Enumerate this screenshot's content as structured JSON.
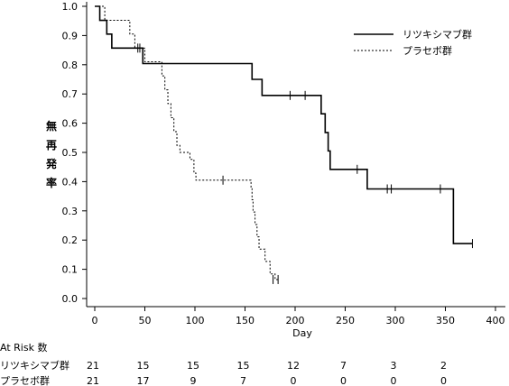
{
  "chart_data": {
    "type": "line",
    "subtype": "kaplan-meier",
    "xlabel": "Day",
    "ylabel": "無再発率",
    "xlim": [
      0,
      400
    ],
    "ylim": [
      0,
      1.0
    ],
    "x_ticks": [
      0,
      50,
      100,
      150,
      200,
      250,
      300,
      350,
      400
    ],
    "y_ticks": [
      "0.0",
      "0.1",
      "0.2",
      "0.3",
      "0.4",
      "0.5",
      "0.6",
      "0.7",
      "0.8",
      "0.9",
      "1.0"
    ],
    "grid": false,
    "legend_position": "top-right",
    "series": [
      {
        "name": "リツキシマブ群",
        "line_style": "solid",
        "steps": [
          [
            0,
            1.0
          ],
          [
            5,
            0.952
          ],
          [
            12,
            0.905
          ],
          [
            17,
            0.857
          ],
          [
            35,
            0.857
          ],
          [
            40,
            0.857
          ],
          [
            47,
            0.857
          ],
          [
            48,
            0.804
          ],
          [
            156,
            0.804
          ],
          [
            157,
            0.75
          ],
          [
            166,
            0.75
          ],
          [
            167,
            0.695
          ],
          [
            219,
            0.695
          ],
          [
            220,
            0.695
          ],
          [
            226,
            0.632
          ],
          [
            230,
            0.568
          ],
          [
            233,
            0.505
          ],
          [
            235,
            0.442
          ],
          [
            271,
            0.442
          ],
          [
            272,
            0.375
          ],
          [
            357,
            0.375
          ],
          [
            358,
            0.188
          ],
          [
            377,
            0.188
          ]
        ],
        "censored": [
          [
            43,
            0.857
          ],
          [
            195,
            0.695
          ],
          [
            210,
            0.695
          ],
          [
            262,
            0.442
          ],
          [
            292,
            0.375
          ],
          [
            296,
            0.375
          ],
          [
            345,
            0.375
          ],
          [
            377,
            0.188
          ]
        ]
      },
      {
        "name": "プラセボ群",
        "line_style": "dashed",
        "steps": [
          [
            0,
            1.0
          ],
          [
            10,
            0.952
          ],
          [
            33,
            0.952
          ],
          [
            35,
            0.905
          ],
          [
            40,
            0.857
          ],
          [
            48,
            0.857
          ],
          [
            50,
            0.81
          ],
          [
            65,
            0.81
          ],
          [
            67,
            0.762
          ],
          [
            70,
            0.714
          ],
          [
            73,
            0.667
          ],
          [
            76,
            0.619
          ],
          [
            79,
            0.571
          ],
          [
            82,
            0.524
          ],
          [
            85,
            0.5
          ],
          [
            95,
            0.476
          ],
          [
            99,
            0.429
          ],
          [
            101,
            0.405
          ],
          [
            155,
            0.405
          ],
          [
            156,
            0.381
          ],
          [
            157,
            0.338
          ],
          [
            158,
            0.296
          ],
          [
            160,
            0.253
          ],
          [
            162,
            0.211
          ],
          [
            164,
            0.169
          ],
          [
            170,
            0.127
          ],
          [
            175,
            0.084
          ],
          [
            180,
            0.065
          ],
          [
            183,
            0.065
          ]
        ],
        "censored": [
          [
            45,
            0.857
          ],
          [
            128,
            0.405
          ],
          [
            178,
            0.065
          ],
          [
            183,
            0.065
          ]
        ]
      }
    ],
    "at_risk": {
      "title": "At Risk 数",
      "rows": [
        {
          "label": "リツキシマブ群",
          "values": [
            "21",
            "15",
            "15",
            "15",
            "12",
            "7",
            "3",
            "2"
          ]
        },
        {
          "label": "プラセボ群",
          "values": [
            "21",
            "17",
            "9",
            "7",
            "0",
            "0",
            "0",
            "0"
          ]
        }
      ],
      "at_days": [
        0,
        50,
        100,
        150,
        200,
        250,
        300,
        350
      ]
    }
  }
}
